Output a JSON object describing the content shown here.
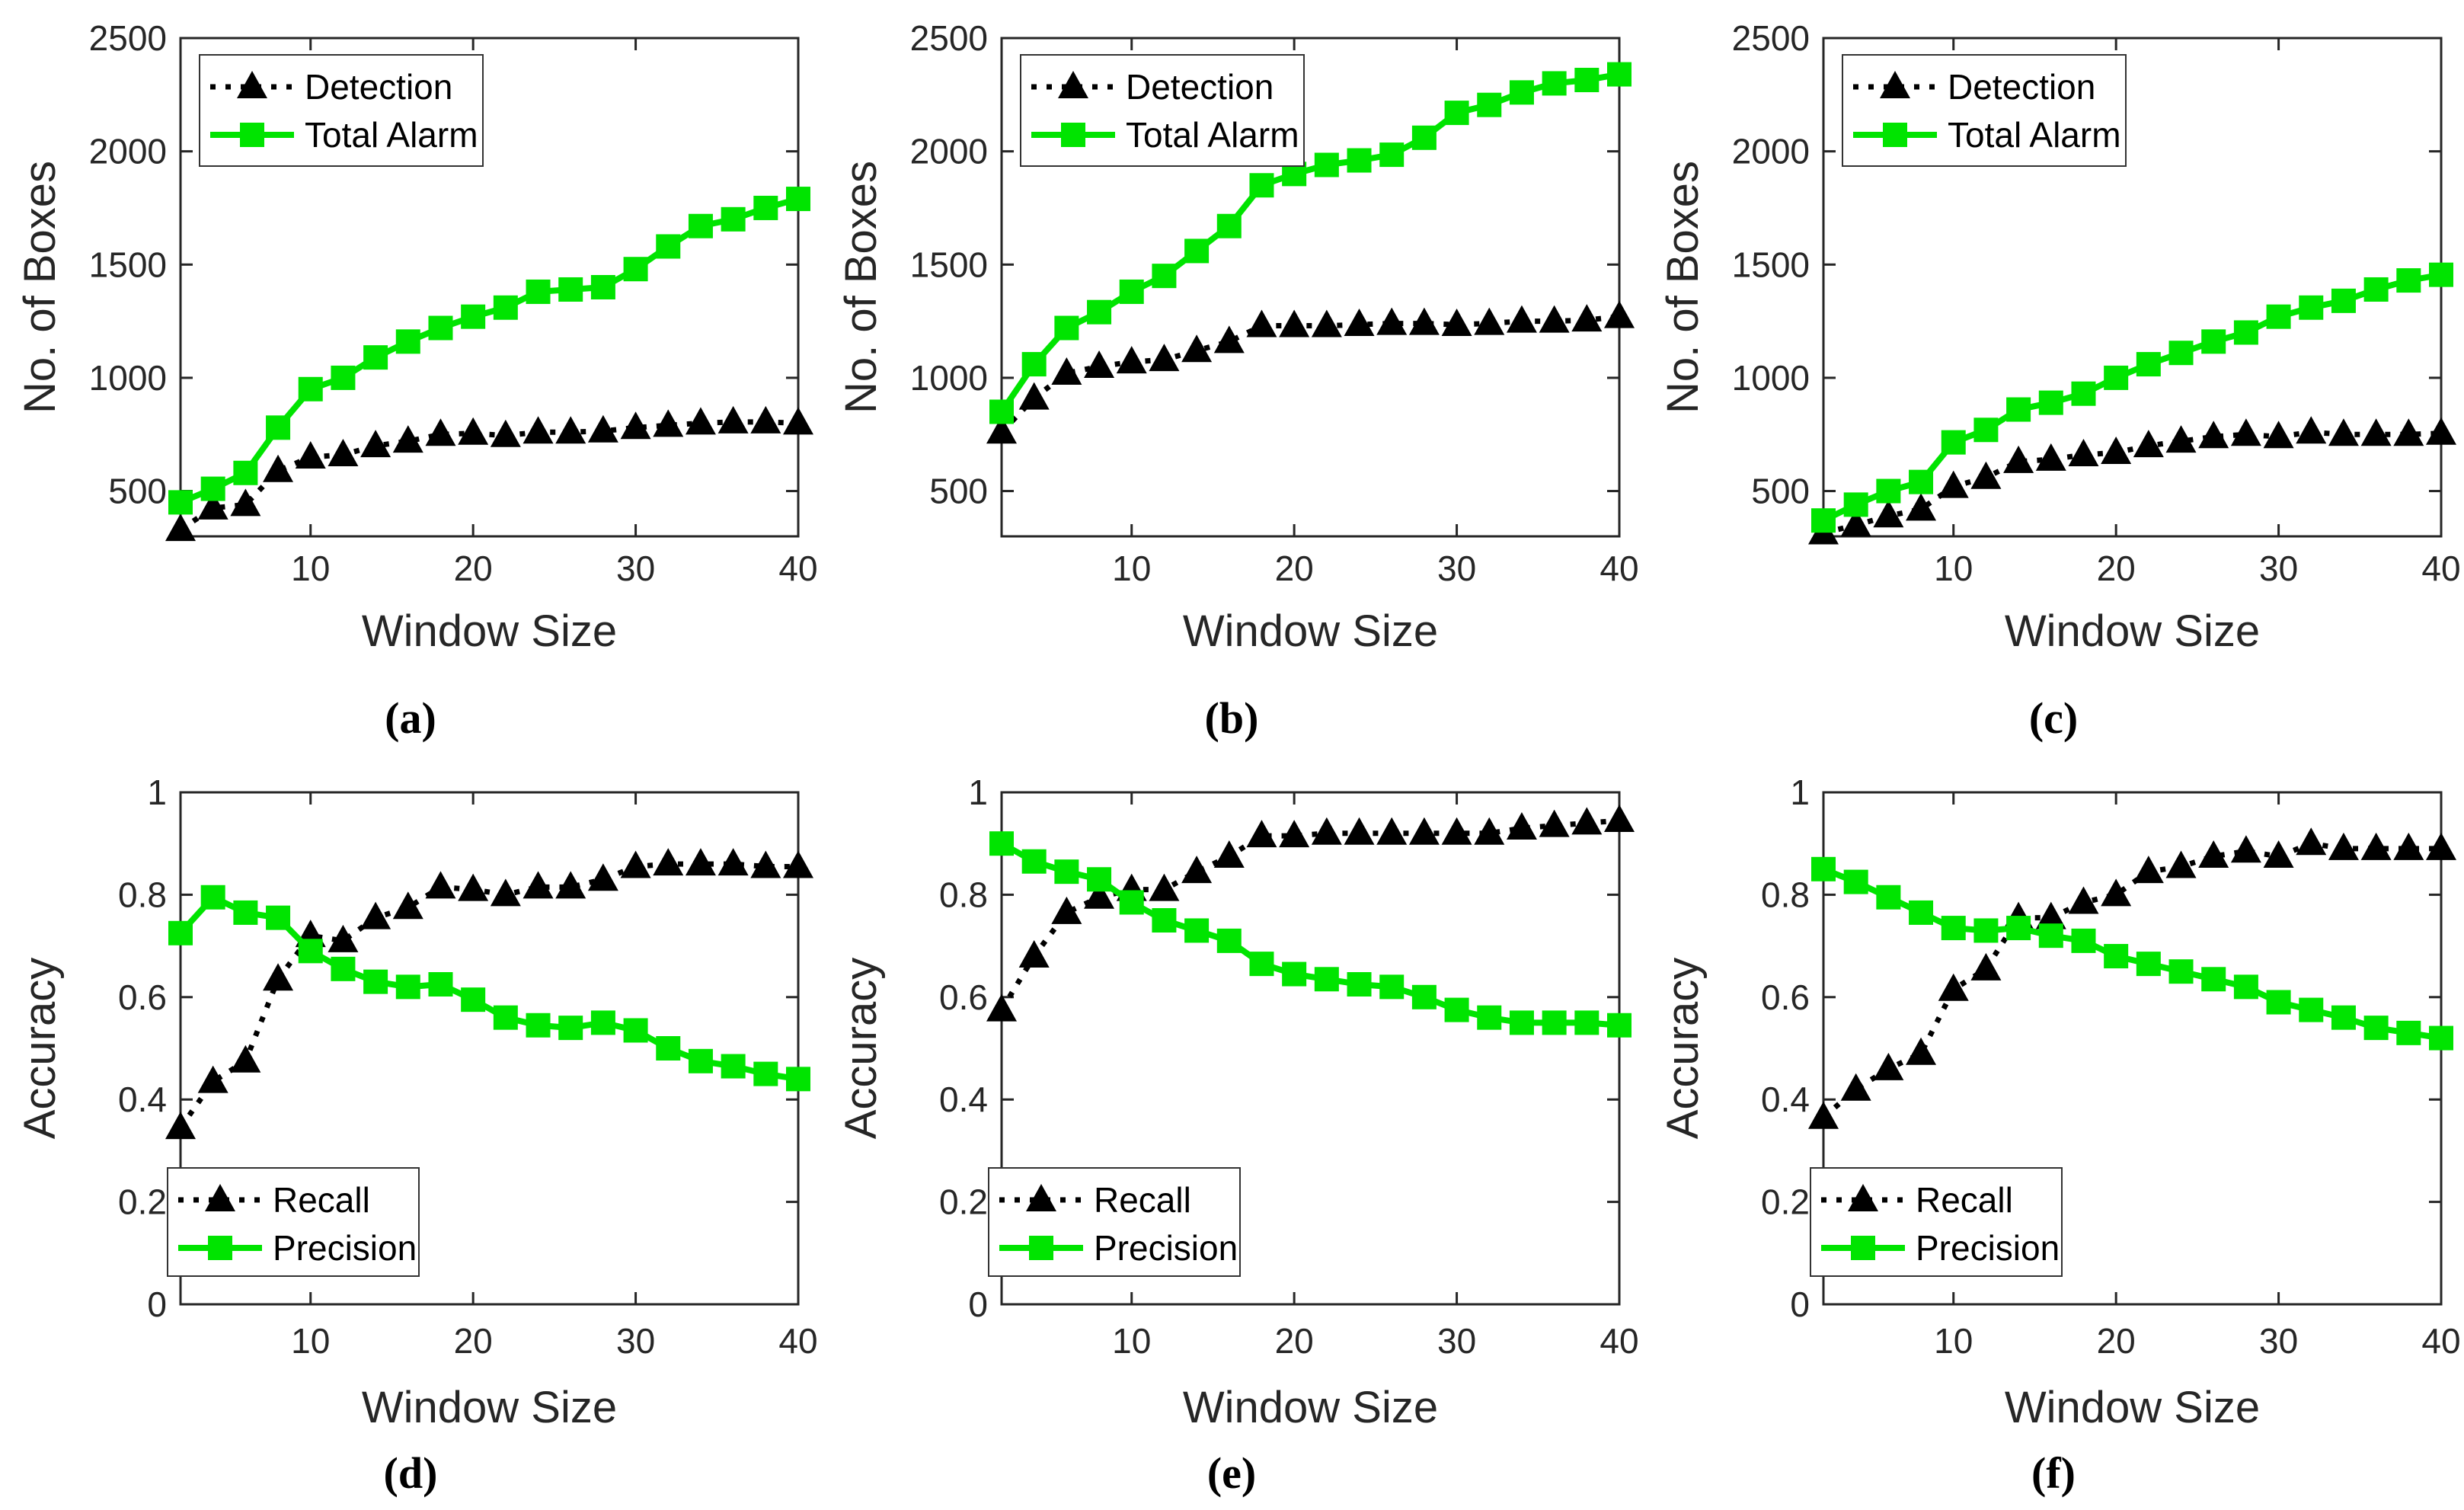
{
  "figure": {
    "background": "#ffffff",
    "axis_color": "#262626",
    "series_colors": {
      "black_series": "#000000",
      "green_series": "#00e400"
    }
  },
  "chart_data": [
    {
      "id": "a",
      "caption": "(a)",
      "type": "line",
      "row": "top",
      "xlabel": "Window Size",
      "ylabel": "No. of Boxes",
      "xlim": [
        2,
        40
      ],
      "ylim": [
        300,
        2500
      ],
      "xticks": [
        10,
        20,
        30,
        40
      ],
      "yticks": [
        500,
        1000,
        1500,
        2000,
        2500
      ],
      "yticklabels": [
        "500",
        "1000",
        "1500",
        "2000",
        "2500"
      ],
      "legend_position": "top-left",
      "grid": false,
      "x": [
        2,
        4,
        6,
        8,
        10,
        12,
        14,
        16,
        18,
        20,
        22,
        24,
        26,
        28,
        30,
        32,
        34,
        36,
        38,
        40
      ],
      "series": [
        {
          "name": "Detection",
          "color": "#000000",
          "line_style": "dotted",
          "marker": "triangle",
          "values": [
            330,
            425,
            440,
            590,
            650,
            660,
            700,
            720,
            750,
            755,
            745,
            760,
            760,
            765,
            780,
            790,
            800,
            805,
            805,
            800
          ]
        },
        {
          "name": "Total Alarm",
          "color": "#00e400",
          "line_style": "solid",
          "marker": "square",
          "values": [
            450,
            510,
            580,
            780,
            950,
            1000,
            1090,
            1160,
            1220,
            1270,
            1310,
            1380,
            1390,
            1400,
            1480,
            1580,
            1670,
            1700,
            1750,
            1790
          ]
        }
      ]
    },
    {
      "id": "b",
      "caption": "(b)",
      "type": "line",
      "row": "top",
      "xlabel": "Window Size",
      "ylabel": "No. of Boxes",
      "xlim": [
        2,
        40
      ],
      "ylim": [
        300,
        2500
      ],
      "xticks": [
        10,
        20,
        30,
        40
      ],
      "yticks": [
        500,
        1000,
        1500,
        2000,
        2500
      ],
      "yticklabels": [
        "500",
        "1000",
        "1500",
        "2000",
        "2500"
      ],
      "legend_position": "top-left",
      "grid": false,
      "x": [
        2,
        4,
        6,
        8,
        10,
        12,
        14,
        16,
        18,
        20,
        22,
        24,
        26,
        28,
        30,
        32,
        34,
        36,
        38,
        40
      ],
      "series": [
        {
          "name": "Detection",
          "color": "#000000",
          "line_style": "dotted",
          "marker": "triangle",
          "values": [
            760,
            910,
            1020,
            1050,
            1070,
            1080,
            1120,
            1160,
            1230,
            1230,
            1230,
            1235,
            1240,
            1240,
            1235,
            1240,
            1250,
            1250,
            1255,
            1270
          ]
        },
        {
          "name": "Total Alarm",
          "color": "#00e400",
          "line_style": "solid",
          "marker": "square",
          "values": [
            850,
            1060,
            1220,
            1290,
            1380,
            1450,
            1560,
            1670,
            1850,
            1900,
            1940,
            1960,
            1985,
            2060,
            2170,
            2205,
            2260,
            2300,
            2315,
            2340
          ]
        }
      ]
    },
    {
      "id": "c",
      "caption": "(c)",
      "type": "line",
      "row": "top",
      "xlabel": "Window Size",
      "ylabel": "No. of Boxes",
      "xlim": [
        2,
        40
      ],
      "ylim": [
        300,
        2500
      ],
      "xticks": [
        10,
        20,
        30,
        40
      ],
      "yticks": [
        500,
        1000,
        1500,
        2000,
        2500
      ],
      "yticklabels": [
        "500",
        "1000",
        "1500",
        "2000",
        "2500"
      ],
      "legend_position": "top-left",
      "grid": false,
      "x": [
        2,
        4,
        6,
        8,
        10,
        12,
        14,
        16,
        18,
        20,
        22,
        24,
        26,
        28,
        30,
        32,
        34,
        36,
        38,
        40
      ],
      "series": [
        {
          "name": "Detection",
          "color": "#000000",
          "line_style": "dotted",
          "marker": "triangle",
          "values": [
            315,
            350,
            390,
            420,
            520,
            560,
            630,
            640,
            660,
            670,
            700,
            720,
            740,
            750,
            740,
            760,
            750,
            750,
            750,
            755
          ]
        },
        {
          "name": "Total Alarm",
          "color": "#00e400",
          "line_style": "solid",
          "marker": "square",
          "values": [
            370,
            440,
            500,
            540,
            715,
            770,
            860,
            890,
            930,
            1000,
            1060,
            1110,
            1160,
            1200,
            1270,
            1310,
            1340,
            1390,
            1430,
            1455
          ]
        }
      ]
    },
    {
      "id": "d",
      "caption": "(d)",
      "type": "line",
      "row": "bottom",
      "xlabel": "Window Size",
      "ylabel": "Accuracy",
      "xlim": [
        2,
        40
      ],
      "ylim": [
        0,
        1
      ],
      "xticks": [
        10,
        20,
        30,
        40
      ],
      "yticks": [
        0,
        0.2,
        0.4,
        0.6,
        0.8,
        1
      ],
      "yticklabels": [
        "0",
        "0.2",
        "0.4",
        "0.6",
        "0.8",
        "1"
      ],
      "legend_position": "bottom-left",
      "grid": false,
      "x": [
        2,
        4,
        6,
        8,
        10,
        12,
        14,
        16,
        18,
        20,
        22,
        24,
        26,
        28,
        30,
        32,
        34,
        36,
        38,
        40
      ],
      "series": [
        {
          "name": "Recall",
          "color": "#000000",
          "line_style": "dotted",
          "marker": "triangle",
          "values": [
            0.345,
            0.435,
            0.475,
            0.635,
            0.72,
            0.71,
            0.755,
            0.775,
            0.815,
            0.81,
            0.8,
            0.815,
            0.815,
            0.83,
            0.855,
            0.86,
            0.86,
            0.86,
            0.855,
            0.855
          ]
        },
        {
          "name": "Precision",
          "color": "#00e400",
          "line_style": "solid",
          "marker": "square",
          "values": [
            0.725,
            0.795,
            0.765,
            0.755,
            0.69,
            0.655,
            0.63,
            0.62,
            0.625,
            0.595,
            0.56,
            0.545,
            0.54,
            0.55,
            0.535,
            0.5,
            0.475,
            0.465,
            0.45,
            0.44
          ]
        }
      ]
    },
    {
      "id": "e",
      "caption": "(e)",
      "type": "line",
      "row": "bottom",
      "xlabel": "Window Size",
      "ylabel": "Accuracy",
      "xlim": [
        2,
        40
      ],
      "ylim": [
        0,
        1
      ],
      "xticks": [
        10,
        20,
        30,
        40
      ],
      "yticks": [
        0,
        0.2,
        0.4,
        0.6,
        0.8,
        1
      ],
      "yticklabels": [
        "0",
        "0.2",
        "0.4",
        "0.6",
        "0.8",
        "1"
      ],
      "legend_position": "bottom-left",
      "grid": false,
      "x": [
        2,
        4,
        6,
        8,
        10,
        12,
        14,
        16,
        18,
        20,
        22,
        24,
        26,
        28,
        30,
        32,
        34,
        36,
        38,
        40
      ],
      "series": [
        {
          "name": "Recall",
          "color": "#000000",
          "line_style": "dotted",
          "marker": "triangle",
          "values": [
            0.575,
            0.68,
            0.765,
            0.795,
            0.81,
            0.81,
            0.845,
            0.875,
            0.915,
            0.915,
            0.92,
            0.92,
            0.92,
            0.92,
            0.92,
            0.92,
            0.93,
            0.935,
            0.94,
            0.945
          ]
        },
        {
          "name": "Precision",
          "color": "#00e400",
          "line_style": "solid",
          "marker": "square",
          "values": [
            0.9,
            0.865,
            0.845,
            0.83,
            0.785,
            0.75,
            0.73,
            0.71,
            0.665,
            0.645,
            0.635,
            0.625,
            0.62,
            0.6,
            0.575,
            0.56,
            0.55,
            0.55,
            0.55,
            0.545
          ]
        }
      ]
    },
    {
      "id": "f",
      "caption": "(f)",
      "type": "line",
      "row": "bottom",
      "xlabel": "Window Size",
      "ylabel": "Accuracy",
      "xlim": [
        2,
        40
      ],
      "ylim": [
        0,
        1
      ],
      "xticks": [
        10,
        20,
        30,
        40
      ],
      "yticks": [
        0,
        0.2,
        0.4,
        0.6,
        0.8,
        1
      ],
      "yticklabels": [
        "0",
        "0.2",
        "0.4",
        "0.6",
        "0.8",
        "1"
      ],
      "legend_position": "bottom-left",
      "grid": false,
      "x": [
        2,
        4,
        6,
        8,
        10,
        12,
        14,
        16,
        18,
        20,
        22,
        24,
        26,
        28,
        30,
        32,
        34,
        36,
        38,
        40
      ],
      "series": [
        {
          "name": "Recall",
          "color": "#000000",
          "line_style": "dotted",
          "marker": "triangle",
          "values": [
            0.365,
            0.42,
            0.46,
            0.49,
            0.615,
            0.655,
            0.755,
            0.755,
            0.785,
            0.8,
            0.845,
            0.855,
            0.875,
            0.885,
            0.875,
            0.9,
            0.89,
            0.89,
            0.89,
            0.89
          ]
        },
        {
          "name": "Precision",
          "color": "#00e400",
          "line_style": "solid",
          "marker": "square",
          "values": [
            0.85,
            0.825,
            0.795,
            0.765,
            0.735,
            0.73,
            0.735,
            0.72,
            0.71,
            0.68,
            0.665,
            0.65,
            0.635,
            0.62,
            0.59,
            0.575,
            0.56,
            0.54,
            0.53,
            0.52
          ]
        }
      ]
    }
  ]
}
